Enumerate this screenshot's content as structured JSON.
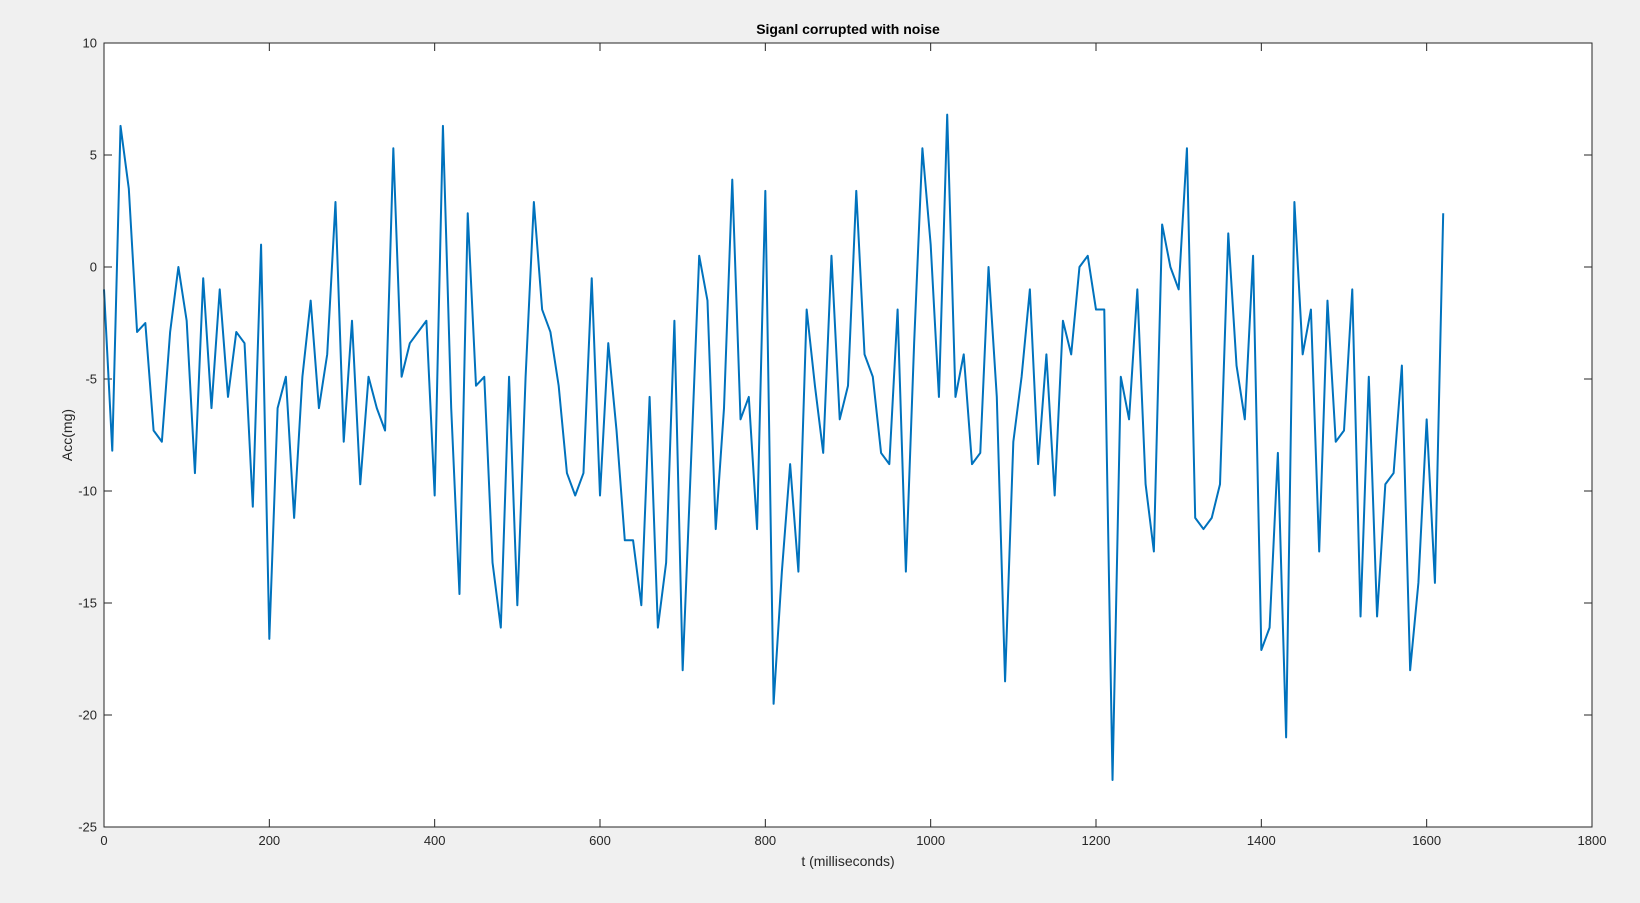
{
  "chart_data": {
    "type": "line",
    "title": "Siganl corrupted with noise",
    "xlabel": "t (milliseconds)",
    "ylabel": "Acc(mg)",
    "xlim": [
      0,
      1800
    ],
    "ylim": [
      -25,
      10
    ],
    "xticks": [
      0,
      200,
      400,
      600,
      800,
      1000,
      1200,
      1400,
      1600,
      1800
    ],
    "yticks": [
      -25,
      -20,
      -15,
      -10,
      -5,
      0,
      5,
      10
    ],
    "grid": false,
    "line_color": "#0072BD",
    "series": [
      {
        "x": [
          0,
          10,
          20,
          30,
          40,
          50,
          60,
          70,
          80,
          90,
          100,
          110,
          120,
          130,
          140,
          150,
          160,
          170,
          180,
          190,
          200,
          210,
          220,
          230,
          240,
          250,
          260,
          270,
          280,
          290,
          300,
          310,
          320,
          330,
          340,
          350,
          360,
          370,
          380,
          390,
          400,
          410,
          420,
          430,
          440,
          450,
          460,
          470,
          480,
          490,
          500,
          510,
          520,
          530,
          540,
          550,
          560,
          570,
          580,
          590,
          600,
          610,
          620,
          630,
          640,
          650,
          660,
          670,
          680,
          690,
          700,
          710,
          720,
          730,
          740,
          750,
          760,
          770,
          780,
          790,
          800,
          810,
          820,
          830,
          840,
          850,
          860,
          870,
          880,
          890,
          900,
          910,
          920,
          930,
          940,
          950,
          960,
          970,
          980,
          990,
          1000,
          1010,
          1020,
          1030,
          1040,
          1050,
          1060,
          1070,
          1080,
          1090,
          1100,
          1110,
          1120,
          1130,
          1140,
          1150,
          1160,
          1170,
          1180,
          1190,
          1200,
          1210,
          1220,
          1230,
          1240,
          1250,
          1260,
          1270,
          1280,
          1290,
          1300,
          1310,
          1320,
          1330,
          1340,
          1350,
          1360,
          1370,
          1380,
          1390,
          1400,
          1410,
          1420,
          1430,
          1440,
          1450,
          1460,
          1470,
          1480,
          1490,
          1500,
          1510,
          1520,
          1530,
          1540,
          1550,
          1560,
          1570,
          1580,
          1590,
          1600,
          1610,
          1620
        ],
        "values": [
          -1.0,
          -8.2,
          6.3,
          3.5,
          -2.9,
          -2.5,
          -7.3,
          -7.8,
          -2.9,
          0.0,
          -2.4,
          -9.2,
          -0.5,
          -6.3,
          -1.0,
          -5.8,
          -2.9,
          -3.4,
          -10.7,
          1.0,
          -16.6,
          -6.3,
          -4.9,
          -11.2,
          -4.9,
          -1.5,
          -6.3,
          -3.9,
          2.9,
          -7.8,
          -2.4,
          -9.7,
          -4.9,
          -6.3,
          -7.3,
          5.3,
          -4.9,
          -3.4,
          -2.9,
          -2.4,
          -10.2,
          6.3,
          -6.3,
          -14.6,
          2.4,
          -5.3,
          -4.9,
          -13.2,
          -16.1,
          -4.9,
          -15.1,
          -4.9,
          2.9,
          -1.9,
          -2.9,
          -5.3,
          -9.2,
          -10.2,
          -9.2,
          -0.5,
          -10.2,
          -3.4,
          -7.3,
          -12.2,
          -12.2,
          -15.1,
          -5.8,
          -16.1,
          -13.2,
          -2.4,
          -18.0,
          -8.8,
          0.5,
          -1.5,
          -11.7,
          -6.3,
          3.9,
          -6.8,
          -5.8,
          -11.7,
          3.4,
          -19.5,
          -13.6,
          -8.8,
          -13.6,
          -1.9,
          -5.3,
          -8.3,
          0.5,
          -6.8,
          -5.3,
          3.4,
          -3.9,
          -4.9,
          -8.3,
          -8.8,
          -1.9,
          -13.6,
          -3.4,
          5.3,
          1.0,
          -5.8,
          6.8,
          -5.8,
          -3.9,
          -8.8,
          -8.3,
          0.0,
          -5.8,
          -18.5,
          -7.8,
          -4.9,
          -1.0,
          -8.8,
          -3.9,
          -10.2,
          -2.4,
          -3.9,
          0.0,
          0.5,
          -1.9,
          -1.9,
          -22.9,
          -4.9,
          -6.8,
          -1.0,
          -9.7,
          -12.7,
          1.9,
          0.0,
          -1.0,
          5.3,
          -11.2,
          -11.7,
          -11.2,
          -9.7,
          1.5,
          -4.4,
          -6.8,
          0.5,
          -17.1,
          -16.1,
          -8.3,
          -21.0,
          2.9,
          -3.9,
          -1.9,
          -12.7,
          -1.5,
          -7.8,
          -7.3,
          -1.0,
          -15.6,
          -4.9,
          -15.6,
          -9.7,
          -9.2,
          -4.4,
          -18.0,
          -14.1,
          -6.8,
          -14.1,
          2.4
        ]
      }
    ]
  }
}
